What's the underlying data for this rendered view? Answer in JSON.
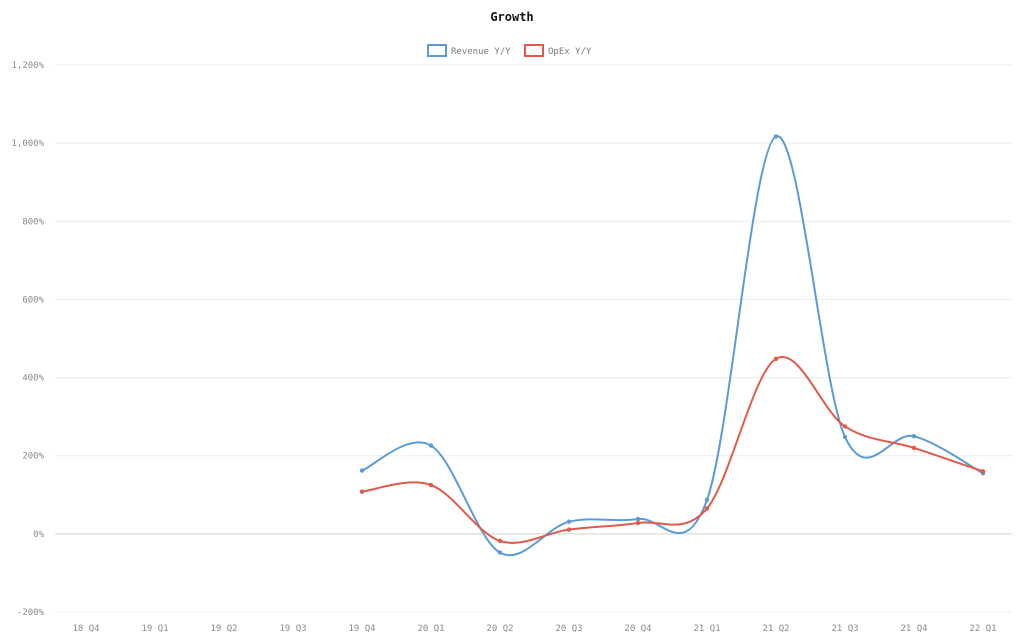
{
  "chart_data": {
    "type": "line",
    "title": "Growth",
    "xlabel": "",
    "ylabel": "",
    "categories": [
      "18 Q4",
      "19 Q1",
      "19 Q2",
      "19 Q3",
      "19 Q4",
      "20 Q1",
      "20 Q2",
      "20 Q3",
      "20 Q4",
      "21 Q1",
      "21 Q2",
      "21 Q3",
      "21 Q4",
      "22 Q1"
    ],
    "yticks": [
      "-200%",
      "0%",
      "200%",
      "400%",
      "600%",
      "800%",
      "1,000%",
      "1,200%"
    ],
    "ylim": [
      -200,
      1200
    ],
    "grid": true,
    "legend_position": "top-center",
    "series": [
      {
        "name": "Revenue Y/Y",
        "color": "#5b9bd5",
        "values": [
          null,
          null,
          null,
          null,
          162,
          226,
          -48,
          31,
          38,
          87,
          1017,
          248,
          250,
          155
        ]
      },
      {
        "name": "OpEx Y/Y",
        "color": "#e05a4a",
        "values": [
          null,
          null,
          null,
          null,
          108,
          125,
          -18,
          11,
          28,
          65,
          448,
          275,
          220,
          160
        ]
      }
    ]
  }
}
